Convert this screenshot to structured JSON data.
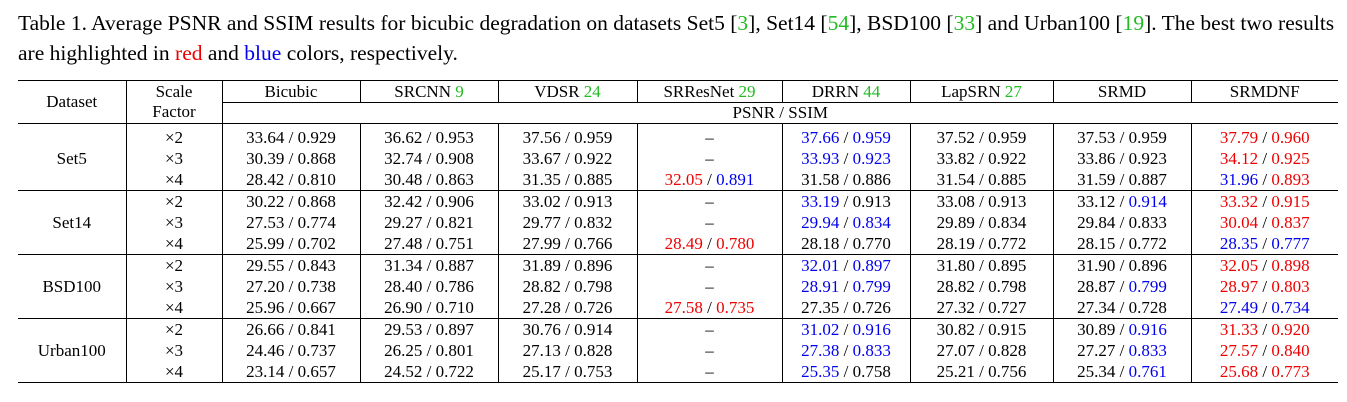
{
  "caption": {
    "text_a": "Table 1. Average PSNR and SSIM results for bicubic degradation on datasets Set5 [",
    "ref_a": "3",
    "text_b": "], Set14 [",
    "ref_b": "54",
    "text_c": "], BSD100 [",
    "ref_c": "33",
    "text_d": "] and Urban100 [",
    "ref_d": "19",
    "text_e": "]. The best two results are highlighted in ",
    "red_word": "red",
    "text_f": " and ",
    "blue_word": "blue",
    "text_g": " colors, respectively."
  },
  "colors": {
    "first": "#ee0000",
    "second": "#0000ee",
    "ref": "#22bb22"
  },
  "header": {
    "dataset": "Dataset",
    "scale_1": "Scale",
    "scale_2": "Factor",
    "metric": "PSNR / SSIM",
    "methods": [
      {
        "name": "Bicubic",
        "ref": ""
      },
      {
        "name": "SRCNN ",
        "ref": "9"
      },
      {
        "name": "VDSR ",
        "ref": "24"
      },
      {
        "name": "SRResNet ",
        "ref": "29"
      },
      {
        "name": "DRRN ",
        "ref": "44"
      },
      {
        "name": "LapSRN ",
        "ref": "27"
      },
      {
        "name": "SRMD",
        "ref": ""
      },
      {
        "name": "SRMDNF",
        "ref": ""
      }
    ]
  },
  "groups": [
    {
      "dataset": "Set5",
      "rows": [
        {
          "scale": "×2",
          "cells": [
            [
              "33.64",
              "",
              "0.929",
              ""
            ],
            [
              "36.62",
              "",
              "0.953",
              ""
            ],
            [
              "37.56",
              "",
              "0.959",
              ""
            ],
            [
              "–",
              "",
              "",
              ""
            ],
            [
              "37.66",
              "b",
              "0.959",
              "b"
            ],
            [
              "37.52",
              "",
              "0.959",
              ""
            ],
            [
              "37.53",
              "",
              "0.959",
              ""
            ],
            [
              "37.79",
              "r",
              "0.960",
              "r"
            ]
          ]
        },
        {
          "scale": "×3",
          "cells": [
            [
              "30.39",
              "",
              "0.868",
              ""
            ],
            [
              "32.74",
              "",
              "0.908",
              ""
            ],
            [
              "33.67",
              "",
              "0.922",
              ""
            ],
            [
              "–",
              "",
              "",
              ""
            ],
            [
              "33.93",
              "b",
              "0.923",
              "b"
            ],
            [
              "33.82",
              "",
              "0.922",
              ""
            ],
            [
              "33.86",
              "",
              "0.923",
              ""
            ],
            [
              "34.12",
              "r",
              "0.925",
              "r"
            ]
          ]
        },
        {
          "scale": "×4",
          "cells": [
            [
              "28.42",
              "",
              "0.810",
              ""
            ],
            [
              "30.48",
              "",
              "0.863",
              ""
            ],
            [
              "31.35",
              "",
              "0.885",
              ""
            ],
            [
              "32.05",
              "r",
              "0.891",
              "b"
            ],
            [
              "31.58",
              "",
              "0.886",
              ""
            ],
            [
              "31.54",
              "",
              "0.885",
              ""
            ],
            [
              "31.59",
              "",
              "0.887",
              ""
            ],
            [
              "31.96",
              "b",
              "0.893",
              "r"
            ]
          ]
        }
      ]
    },
    {
      "dataset": "Set14",
      "rows": [
        {
          "scale": "×2",
          "cells": [
            [
              "30.22",
              "",
              "0.868",
              ""
            ],
            [
              "32.42",
              "",
              "0.906",
              ""
            ],
            [
              "33.02",
              "",
              "0.913",
              ""
            ],
            [
              "–",
              "",
              "",
              ""
            ],
            [
              "33.19",
              "b",
              "0.913",
              ""
            ],
            [
              "33.08",
              "",
              "0.913",
              ""
            ],
            [
              "33.12",
              "",
              "0.914",
              "b"
            ],
            [
              "33.32",
              "r",
              "0.915",
              "r"
            ]
          ]
        },
        {
          "scale": "×3",
          "cells": [
            [
              "27.53",
              "",
              "0.774",
              ""
            ],
            [
              "29.27",
              "",
              "0.821",
              ""
            ],
            [
              "29.77",
              "",
              "0.832",
              ""
            ],
            [
              "–",
              "",
              "",
              ""
            ],
            [
              "29.94",
              "b",
              "0.834",
              "b"
            ],
            [
              "29.89",
              "",
              "0.834",
              ""
            ],
            [
              "29.84",
              "",
              "0.833",
              ""
            ],
            [
              "30.04",
              "r",
              "0.837",
              "r"
            ]
          ]
        },
        {
          "scale": "×4",
          "cells": [
            [
              "25.99",
              "",
              "0.702",
              ""
            ],
            [
              "27.48",
              "",
              "0.751",
              ""
            ],
            [
              "27.99",
              "",
              "0.766",
              ""
            ],
            [
              "28.49",
              "r",
              "0.780",
              "r"
            ],
            [
              "28.18",
              "",
              "0.770",
              ""
            ],
            [
              "28.19",
              "",
              "0.772",
              ""
            ],
            [
              "28.15",
              "",
              "0.772",
              ""
            ],
            [
              "28.35",
              "b",
              "0.777",
              "b"
            ]
          ]
        }
      ]
    },
    {
      "dataset": "BSD100",
      "rows": [
        {
          "scale": "×2",
          "cells": [
            [
              "29.55",
              "",
              "0.843",
              ""
            ],
            [
              "31.34",
              "",
              "0.887",
              ""
            ],
            [
              "31.89",
              "",
              "0.896",
              ""
            ],
            [
              "–",
              "",
              "",
              ""
            ],
            [
              "32.01",
              "b",
              "0.897",
              "b"
            ],
            [
              "31.80",
              "",
              "0.895",
              ""
            ],
            [
              "31.90",
              "",
              "0.896",
              ""
            ],
            [
              "32.05",
              "r",
              "0.898",
              "r"
            ]
          ]
        },
        {
          "scale": "×3",
          "cells": [
            [
              "27.20",
              "",
              "0.738",
              ""
            ],
            [
              "28.40",
              "",
              "0.786",
              ""
            ],
            [
              "28.82",
              "",
              "0.798",
              ""
            ],
            [
              "–",
              "",
              "",
              ""
            ],
            [
              "28.91",
              "b",
              "0.799",
              "b"
            ],
            [
              "28.82",
              "",
              "0.798",
              ""
            ],
            [
              "28.87",
              "",
              "0.799",
              "b"
            ],
            [
              "28.97",
              "r",
              "0.803",
              "r"
            ]
          ]
        },
        {
          "scale": "×4",
          "cells": [
            [
              "25.96",
              "",
              "0.667",
              ""
            ],
            [
              "26.90",
              "",
              "0.710",
              ""
            ],
            [
              "27.28",
              "",
              "0.726",
              ""
            ],
            [
              "27.58",
              "r",
              "0.735",
              "r"
            ],
            [
              "27.35",
              "",
              "0.726",
              ""
            ],
            [
              "27.32",
              "",
              "0.727",
              ""
            ],
            [
              "27.34",
              "",
              "0.728",
              ""
            ],
            [
              "27.49",
              "b",
              "0.734",
              "b"
            ]
          ]
        }
      ]
    },
    {
      "dataset": "Urban100",
      "rows": [
        {
          "scale": "×2",
          "cells": [
            [
              "26.66",
              "",
              "0.841",
              ""
            ],
            [
              "29.53",
              "",
              "0.897",
              ""
            ],
            [
              "30.76",
              "",
              "0.914",
              ""
            ],
            [
              "–",
              "",
              "",
              ""
            ],
            [
              "31.02",
              "b",
              "0.916",
              "b"
            ],
            [
              "30.82",
              "",
              "0.915",
              ""
            ],
            [
              "30.89",
              "",
              "0.916",
              "b"
            ],
            [
              "31.33",
              "r",
              "0.920",
              "r"
            ]
          ]
        },
        {
          "scale": "×3",
          "cells": [
            [
              "24.46",
              "",
              "0.737",
              ""
            ],
            [
              "26.25",
              "",
              "0.801",
              ""
            ],
            [
              "27.13",
              "",
              "0.828",
              ""
            ],
            [
              "–",
              "",
              "",
              ""
            ],
            [
              "27.38",
              "b",
              "0.833",
              "b"
            ],
            [
              "27.07",
              "",
              "0.828",
              ""
            ],
            [
              "27.27",
              "",
              "0.833",
              "b"
            ],
            [
              "27.57",
              "r",
              "0.840",
              "r"
            ]
          ]
        },
        {
          "scale": "×4",
          "cells": [
            [
              "23.14",
              "",
              "0.657",
              ""
            ],
            [
              "24.52",
              "",
              "0.722",
              ""
            ],
            [
              "25.17",
              "",
              "0.753",
              ""
            ],
            [
              "–",
              "",
              "",
              ""
            ],
            [
              "25.35",
              "b",
              "0.758",
              ""
            ],
            [
              "25.21",
              "",
              "0.756",
              ""
            ],
            [
              "25.34",
              "",
              "0.761",
              "b"
            ],
            [
              "25.68",
              "r",
              "0.773",
              "r"
            ]
          ]
        }
      ]
    }
  ]
}
